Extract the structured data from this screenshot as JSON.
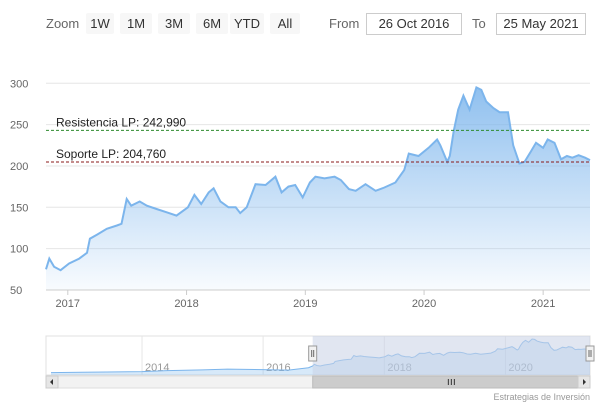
{
  "toolbar": {
    "zoom_label": "Zoom",
    "buttons": [
      "1W",
      "1M",
      "3M",
      "6M",
      "YTD",
      "All"
    ],
    "from_label": "From",
    "from_value": "26 Oct 2016",
    "to_label": "To",
    "to_value": "25 May 2021"
  },
  "credit": "Estrategias de Inversión",
  "colors": {
    "series": "#7cb5ec",
    "resistance": "#2e8b2e",
    "support": "#8b1a1a",
    "grid": "#e6e6e6",
    "navigator_mask": "#c8d2e6"
  },
  "chart_data": {
    "type": "area",
    "ylim": [
      50,
      310
    ],
    "yticks": [
      50,
      100,
      150,
      200,
      250,
      300
    ],
    "xlabels": [
      "2017",
      "2018",
      "2019",
      "2020",
      "2021"
    ],
    "x_range": [
      "2016-10-26",
      "2021-05-25"
    ],
    "grid": true,
    "series": [
      {
        "values": [
          [
            "2016-10-26",
            75
          ],
          [
            "2016-11-05",
            88
          ],
          [
            "2016-11-20",
            78
          ],
          [
            "2016-12-10",
            74
          ],
          [
            "2017-01-05",
            82
          ],
          [
            "2017-02-05",
            88
          ],
          [
            "2017-03-01",
            95
          ],
          [
            "2017-03-10",
            112
          ],
          [
            "2017-04-01",
            117
          ],
          [
            "2017-05-01",
            124
          ],
          [
            "2017-06-01",
            128
          ],
          [
            "2017-06-15",
            130
          ],
          [
            "2017-07-01",
            160
          ],
          [
            "2017-07-15",
            152
          ],
          [
            "2017-08-10",
            157
          ],
          [
            "2017-09-01",
            152
          ],
          [
            "2017-10-01",
            148
          ],
          [
            "2017-11-01",
            144
          ],
          [
            "2017-12-01",
            140
          ],
          [
            "2018-01-05",
            150
          ],
          [
            "2018-01-25",
            165
          ],
          [
            "2018-02-15",
            154
          ],
          [
            "2018-03-10",
            168
          ],
          [
            "2018-03-25",
            173
          ],
          [
            "2018-04-15",
            157
          ],
          [
            "2018-05-10",
            150
          ],
          [
            "2018-06-01",
            150
          ],
          [
            "2018-06-15",
            143
          ],
          [
            "2018-07-05",
            150
          ],
          [
            "2018-08-01",
            178
          ],
          [
            "2018-09-01",
            177
          ],
          [
            "2018-10-01",
            187
          ],
          [
            "2018-10-20",
            168
          ],
          [
            "2018-11-10",
            175
          ],
          [
            "2018-12-01",
            177
          ],
          [
            "2018-12-24",
            162
          ],
          [
            "2019-01-15",
            180
          ],
          [
            "2019-02-01",
            187
          ],
          [
            "2019-03-01",
            185
          ],
          [
            "2019-04-01",
            187
          ],
          [
            "2019-04-20",
            183
          ],
          [
            "2019-05-15",
            172
          ],
          [
            "2019-06-05",
            170
          ],
          [
            "2019-07-05",
            178
          ],
          [
            "2019-08-05",
            170
          ],
          [
            "2019-09-01",
            174
          ],
          [
            "2019-10-05",
            180
          ],
          [
            "2019-11-01",
            195
          ],
          [
            "2019-11-15",
            215
          ],
          [
            "2019-12-15",
            212
          ],
          [
            "2020-01-15",
            222
          ],
          [
            "2020-02-10",
            232
          ],
          [
            "2020-02-20",
            225
          ],
          [
            "2020-03-12",
            205
          ],
          [
            "2020-03-20",
            212
          ],
          [
            "2020-04-01",
            242
          ],
          [
            "2020-04-15",
            268
          ],
          [
            "2020-05-01",
            285
          ],
          [
            "2020-05-20",
            268
          ],
          [
            "2020-06-10",
            295
          ],
          [
            "2020-06-25",
            292
          ],
          [
            "2020-07-10",
            278
          ],
          [
            "2020-08-01",
            270
          ],
          [
            "2020-08-20",
            265
          ],
          [
            "2020-09-15",
            265
          ],
          [
            "2020-10-01",
            225
          ],
          [
            "2020-10-20",
            203
          ],
          [
            "2020-11-05",
            205
          ],
          [
            "2020-11-25",
            218
          ],
          [
            "2020-12-10",
            228
          ],
          [
            "2021-01-01",
            222
          ],
          [
            "2021-01-15",
            232
          ],
          [
            "2021-02-05",
            228
          ],
          [
            "2021-02-25",
            208
          ],
          [
            "2021-03-15",
            212
          ],
          [
            "2021-04-01",
            210
          ],
          [
            "2021-04-20",
            213
          ],
          [
            "2021-05-10",
            210
          ],
          [
            "2021-05-25",
            207
          ]
        ]
      }
    ],
    "plot_lines": [
      {
        "label": "Resistencia LP: 242,990",
        "value": 242.99,
        "color": "#2e8b2e"
      },
      {
        "label": "Soporte LP: 204,760",
        "value": 204.76,
        "color": "#8b1a1a"
      }
    ],
    "navigator": {
      "labels": [
        "2014",
        "2016",
        "2018",
        "2020"
      ],
      "x_range": [
        "2012-06-01",
        "2021-05-25"
      ],
      "selection": [
        "2016-10-26",
        "2021-05-25"
      ]
    }
  }
}
